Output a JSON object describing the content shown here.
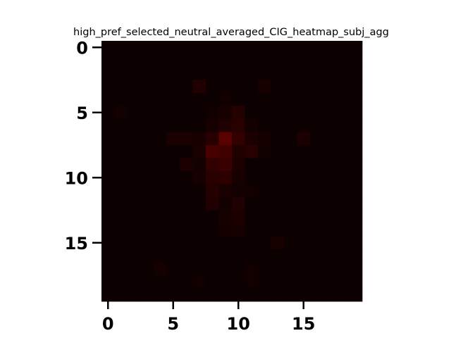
{
  "chart_data": {
    "type": "heatmap",
    "title": "high_pref_selected_neutral_averaged_CIG_heatmap_subj_agg",
    "xlabel": "",
    "ylabel": "",
    "rows": 20,
    "cols": 20,
    "xlim": [
      -0.5,
      19.5
    ],
    "ylim": [
      19.5,
      -0.5
    ],
    "x_ticks": [
      0,
      5,
      10,
      15
    ],
    "y_ticks": [
      0,
      5,
      10,
      15
    ],
    "x_tick_labels": [
      "0",
      "5",
      "10",
      "15"
    ],
    "y_tick_labels": [
      "0",
      "5",
      "10",
      "15"
    ],
    "colormap": {
      "low": "#0d0000",
      "high": "#8c0000"
    },
    "grid": false,
    "values": [
      [
        0.0,
        0.0,
        0.0,
        0.0,
        0.0,
        0.0,
        0.0,
        0.0,
        0.0,
        0.0,
        0.0,
        0.0,
        0.0,
        0.0,
        0.0,
        0.0,
        0.0,
        0.0,
        0.0,
        0.0
      ],
      [
        0.0,
        0.0,
        0.0,
        0.0,
        0.0,
        0.0,
        0.0,
        0.0,
        0.0,
        0.0,
        0.0,
        0.0,
        0.0,
        0.0,
        0.0,
        0.0,
        0.0,
        0.0,
        0.0,
        0.0
      ],
      [
        0.0,
        0.0,
        0.0,
        0.0,
        0.0,
        0.0,
        0.0,
        0.0,
        0.0,
        0.0,
        0.0,
        0.0,
        0.0,
        0.0,
        0.0,
        0.0,
        0.0,
        0.0,
        0.0,
        0.0
      ],
      [
        0.0,
        0.0,
        0.0,
        0.0,
        0.0,
        0.0,
        0.0,
        0.15,
        0.0,
        0.0,
        0.0,
        0.0,
        0.08,
        0.0,
        0.0,
        0.0,
        0.0,
        0.0,
        0.0,
        0.0
      ],
      [
        0.0,
        0.0,
        0.0,
        0.0,
        0.0,
        0.0,
        0.0,
        0.0,
        0.0,
        0.04,
        0.0,
        0.0,
        0.0,
        0.0,
        0.0,
        0.0,
        0.0,
        0.0,
        0.0,
        0.0
      ],
      [
        0.0,
        0.05,
        0.0,
        0.0,
        0.0,
        0.0,
        0.0,
        0.0,
        0.03,
        0.07,
        0.18,
        0.0,
        0.0,
        0.0,
        0.0,
        0.0,
        0.0,
        0.0,
        0.0,
        0.0
      ],
      [
        0.0,
        0.0,
        0.0,
        0.0,
        0.0,
        0.0,
        0.0,
        0.0,
        0.08,
        0.15,
        0.22,
        0.05,
        0.0,
        0.0,
        0.0,
        0.0,
        0.0,
        0.0,
        0.0,
        0.0
      ],
      [
        0.0,
        0.0,
        0.0,
        0.0,
        0.0,
        0.1,
        0.1,
        0.09,
        0.2,
        0.6,
        0.3,
        0.12,
        0.06,
        0.0,
        0.0,
        0.1,
        0.0,
        0.0,
        0.0,
        0.0
      ],
      [
        0.0,
        0.0,
        0.0,
        0.0,
        0.0,
        0.0,
        0.0,
        0.1,
        0.45,
        0.4,
        0.15,
        0.22,
        0.02,
        0.0,
        0.0,
        0.0,
        0.0,
        0.0,
        0.0,
        0.0
      ],
      [
        0.0,
        0.0,
        0.0,
        0.0,
        0.0,
        0.0,
        0.1,
        0.05,
        0.28,
        0.35,
        0.12,
        0.0,
        0.0,
        0.0,
        0.0,
        0.0,
        0.0,
        0.0,
        0.0,
        0.0
      ],
      [
        0.0,
        0.0,
        0.0,
        0.0,
        0.0,
        0.0,
        0.0,
        0.08,
        0.22,
        0.25,
        0.08,
        0.0,
        0.0,
        0.0,
        0.0,
        0.0,
        0.0,
        0.0,
        0.0,
        0.0
      ],
      [
        0.0,
        0.0,
        0.0,
        0.0,
        0.0,
        0.0,
        0.0,
        0.0,
        0.18,
        0.1,
        0.05,
        0.04,
        0.0,
        0.0,
        0.0,
        0.0,
        0.0,
        0.0,
        0.0,
        0.0
      ],
      [
        0.0,
        0.0,
        0.0,
        0.0,
        0.0,
        0.0,
        0.0,
        0.0,
        0.15,
        0.05,
        0.15,
        0.0,
        0.0,
        0.0,
        0.0,
        0.0,
        0.0,
        0.0,
        0.0,
        0.0
      ],
      [
        0.0,
        0.0,
        0.0,
        0.0,
        0.0,
        0.0,
        0.0,
        0.0,
        0.0,
        0.08,
        0.12,
        0.0,
        0.0,
        0.0,
        0.0,
        0.0,
        0.0,
        0.0,
        0.0,
        0.0
      ],
      [
        0.0,
        0.0,
        0.0,
        0.0,
        0.0,
        0.0,
        0.0,
        0.0,
        0.0,
        0.06,
        0.08,
        0.0,
        0.0,
        0.0,
        0.0,
        0.0,
        0.0,
        0.0,
        0.0,
        0.0
      ],
      [
        0.0,
        0.0,
        0.0,
        0.0,
        0.0,
        0.0,
        0.0,
        0.0,
        0.0,
        0.0,
        0.0,
        0.0,
        0.0,
        0.07,
        0.0,
        0.0,
        0.0,
        0.0,
        0.0,
        0.0
      ],
      [
        0.0,
        0.0,
        0.0,
        0.0,
        0.0,
        0.0,
        0.0,
        0.0,
        0.0,
        0.0,
        0.0,
        0.0,
        0.0,
        0.0,
        0.0,
        0.0,
        0.0,
        0.0,
        0.0,
        0.0
      ],
      [
        0.0,
        0.0,
        0.0,
        0.0,
        0.06,
        0.0,
        0.0,
        0.0,
        0.0,
        0.0,
        0.0,
        0.04,
        0.0,
        0.0,
        0.0,
        0.0,
        0.0,
        0.0,
        0.0,
        0.0
      ],
      [
        0.0,
        0.0,
        0.0,
        0.0,
        0.0,
        0.0,
        0.0,
        0.03,
        0.0,
        0.0,
        0.0,
        0.04,
        0.0,
        0.0,
        0.0,
        0.0,
        0.0,
        0.0,
        0.0,
        0.0
      ],
      [
        0.0,
        0.0,
        0.0,
        0.0,
        0.0,
        0.0,
        0.0,
        0.0,
        0.0,
        0.0,
        0.0,
        0.0,
        0.0,
        0.0,
        0.0,
        0.0,
        0.0,
        0.0,
        0.0,
        0.0
      ]
    ]
  }
}
